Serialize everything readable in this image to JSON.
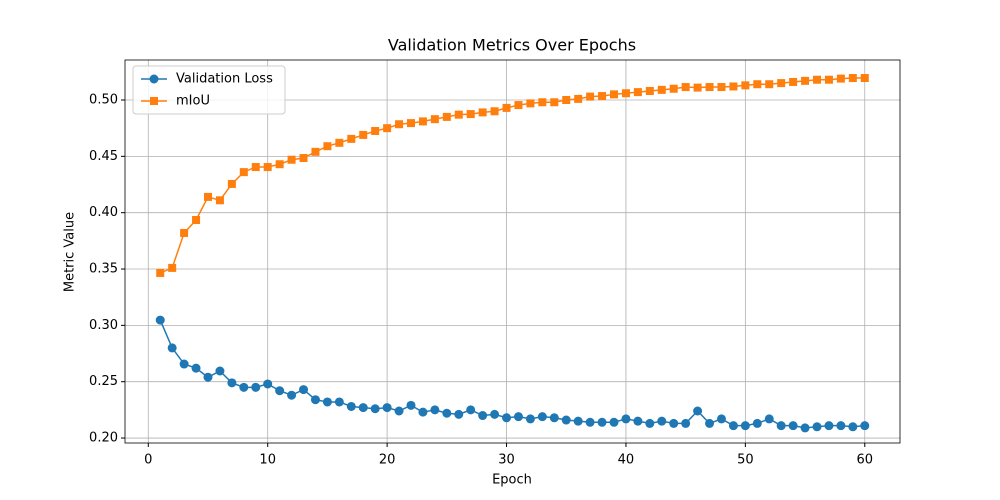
{
  "chart_data": {
    "type": "line",
    "title": "Validation Metrics Over Epochs",
    "x_label": "Epoch",
    "y_label": "Metric Value",
    "x": [
      1,
      2,
      3,
      4,
      5,
      6,
      7,
      8,
      9,
      10,
      11,
      12,
      13,
      14,
      15,
      16,
      17,
      18,
      19,
      20,
      21,
      22,
      23,
      24,
      25,
      26,
      27,
      28,
      29,
      30,
      31,
      32,
      33,
      34,
      35,
      36,
      37,
      38,
      39,
      40,
      41,
      42,
      43,
      44,
      45,
      46,
      47,
      48,
      49,
      50,
      51,
      52,
      53,
      54,
      55,
      56,
      57,
      58,
      59,
      60
    ],
    "series": [
      {
        "name": "Validation Loss",
        "color": "#1f77b4",
        "marker": "circle",
        "values": [
          0.3047,
          0.28,
          0.2657,
          0.262,
          0.254,
          0.2595,
          0.249,
          0.245,
          0.245,
          0.248,
          0.242,
          0.238,
          0.243,
          0.234,
          0.232,
          0.232,
          0.228,
          0.227,
          0.226,
          0.227,
          0.224,
          0.229,
          0.223,
          0.225,
          0.222,
          0.221,
          0.225,
          0.22,
          0.221,
          0.218,
          0.219,
          0.217,
          0.219,
          0.218,
          0.216,
          0.215,
          0.214,
          0.214,
          0.214,
          0.217,
          0.215,
          0.213,
          0.215,
          0.213,
          0.213,
          0.224,
          0.213,
          0.217,
          0.211,
          0.211,
          0.213,
          0.217,
          0.211,
          0.211,
          0.209,
          0.21,
          0.211,
          0.211,
          0.21,
          0.211
        ]
      },
      {
        "name": "mIoU",
        "color": "#ff7f0e",
        "marker": "square",
        "values": [
          0.3465,
          0.351,
          0.382,
          0.3935,
          0.414,
          0.411,
          0.4255,
          0.436,
          0.4405,
          0.4405,
          0.443,
          0.447,
          0.4485,
          0.454,
          0.459,
          0.462,
          0.4655,
          0.469,
          0.4725,
          0.475,
          0.4785,
          0.4795,
          0.481,
          0.483,
          0.485,
          0.487,
          0.4875,
          0.489,
          0.49,
          0.493,
          0.4955,
          0.497,
          0.498,
          0.498,
          0.5,
          0.501,
          0.503,
          0.5035,
          0.505,
          0.506,
          0.507,
          0.508,
          0.509,
          0.51,
          0.5115,
          0.511,
          0.5115,
          0.5115,
          0.512,
          0.513,
          0.514,
          0.514,
          0.515,
          0.516,
          0.517,
          0.518,
          0.518,
          0.519,
          0.5195,
          0.5195
        ]
      }
    ],
    "xlim": [
      -1.95,
      62.95
    ],
    "ylim": [
      0.1956,
      0.5355
    ],
    "xticks": [
      0,
      10,
      20,
      30,
      40,
      50,
      60
    ],
    "yticks": [
      {
        "value": 0.2,
        "label": "0.20"
      },
      {
        "value": 0.25,
        "label": "0.25"
      },
      {
        "value": 0.3,
        "label": "0.30"
      },
      {
        "value": 0.35,
        "label": "0.35"
      },
      {
        "value": 0.4,
        "label": "0.40"
      },
      {
        "value": 0.45,
        "label": "0.45"
      },
      {
        "value": 0.5,
        "label": "0.50"
      }
    ],
    "grid": true,
    "legend": "upper-left"
  }
}
